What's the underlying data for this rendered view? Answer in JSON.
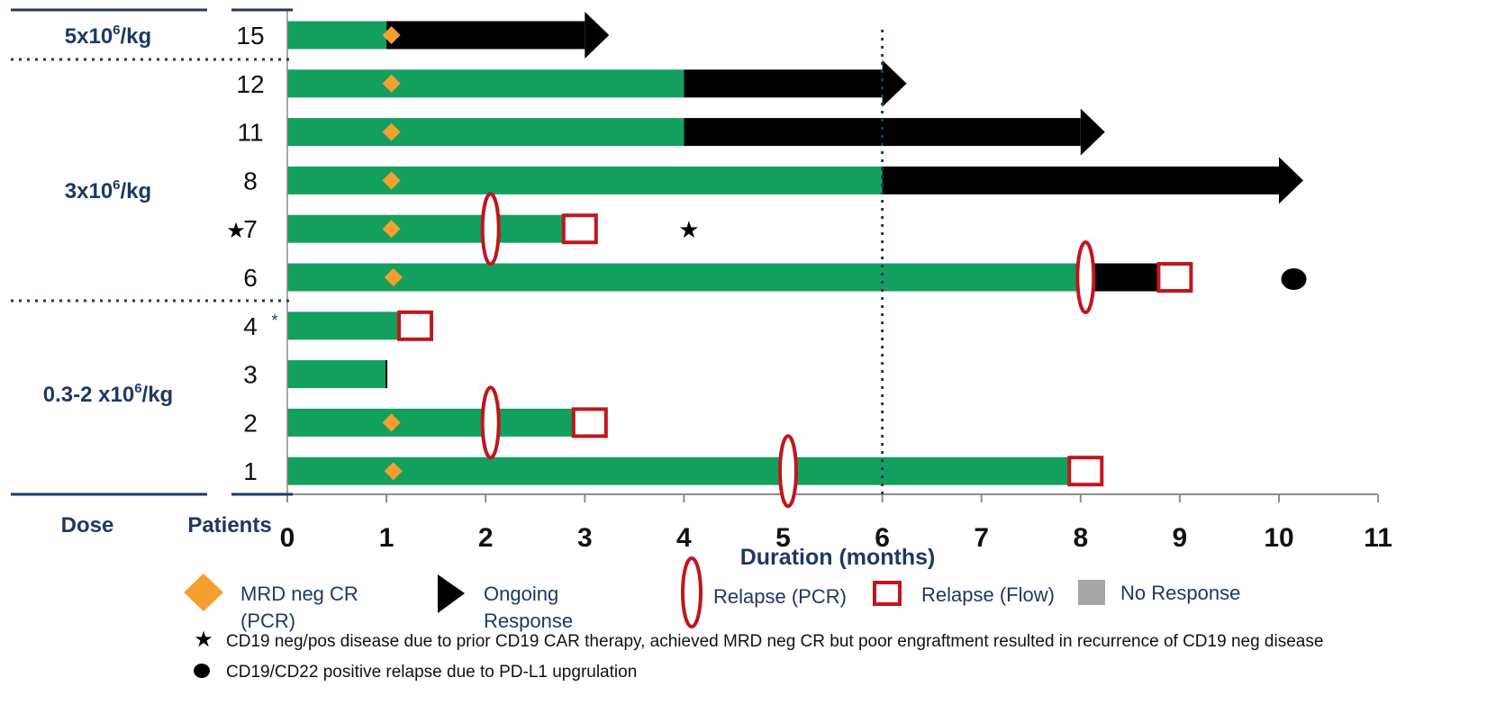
{
  "chart_data": {
    "type": "bar",
    "xlabel": "Duration (months)",
    "xlim": [
      0,
      11
    ],
    "x_ticks": [
      "0",
      "1",
      "2",
      "3",
      "4",
      "5",
      "6",
      "7",
      "8",
      "9",
      "10",
      "11"
    ],
    "reference_line_month": 6,
    "column_headers": {
      "dose": "Dose",
      "patients": "Patients"
    },
    "dose_groups": [
      {
        "label": "5x10",
        "sup": "6",
        "suffix": "/kg",
        "patients": [
          "15"
        ]
      },
      {
        "label": "3x10",
        "sup": "6",
        "suffix": "/kg",
        "patients": [
          "12",
          "11",
          "8",
          "7",
          "6"
        ]
      },
      {
        "label": "0.3-2 x10",
        "sup": "6",
        "suffix": "/kg",
        "patients": [
          "4",
          "3",
          "2",
          "1"
        ]
      }
    ],
    "patients": [
      {
        "id": "15",
        "prefix": "",
        "note_mark": "",
        "response_end": 1.0,
        "ongoing_end": 3.0,
        "arrow": true,
        "mrd": 1.05,
        "pcr": null,
        "flow": null,
        "star_at": null,
        "dot_at": null
      },
      {
        "id": "12",
        "prefix": "",
        "note_mark": "",
        "response_end": 4.0,
        "ongoing_end": 6.0,
        "arrow": true,
        "mrd": 1.05,
        "pcr": null,
        "flow": null,
        "star_at": null,
        "dot_at": null
      },
      {
        "id": "11",
        "prefix": "",
        "note_mark": "",
        "response_end": 4.0,
        "ongoing_end": 8.0,
        "arrow": true,
        "mrd": 1.05,
        "pcr": null,
        "flow": null,
        "star_at": null,
        "dot_at": null
      },
      {
        "id": "8",
        "prefix": "",
        "note_mark": "",
        "response_end": 6.0,
        "ongoing_end": 10.0,
        "arrow": true,
        "mrd": 1.05,
        "pcr": null,
        "flow": null,
        "star_at": null,
        "dot_at": null
      },
      {
        "id": "7",
        "prefix": "★",
        "note_mark": "",
        "response_end": 2.95,
        "ongoing_end": null,
        "arrow": false,
        "mrd": 1.05,
        "pcr": 2.05,
        "flow": 2.95,
        "star_at": 4.05,
        "dot_at": null
      },
      {
        "id": "6",
        "prefix": "",
        "note_mark": "",
        "response_end": 8.05,
        "ongoing_end": 8.95,
        "arrow": false,
        "mrd": 1.07,
        "pcr": 8.05,
        "flow": 8.95,
        "star_at": null,
        "dot_at": 10.15
      },
      {
        "id": "4",
        "prefix": "",
        "note_mark": "*",
        "response_end": 1.2,
        "ongoing_end": null,
        "arrow": false,
        "mrd": null,
        "pcr": null,
        "flow": 1.29,
        "star_at": null,
        "dot_at": null
      },
      {
        "id": "3",
        "prefix": "",
        "note_mark": "",
        "response_end": 1.0,
        "ongoing_end": null,
        "arrow": false,
        "mrd": null,
        "pcr": null,
        "flow": null,
        "star_at": null,
        "dot_at": null
      },
      {
        "id": "2",
        "prefix": "",
        "note_mark": "",
        "response_end": 3.0,
        "ongoing_end": null,
        "arrow": false,
        "mrd": 1.05,
        "pcr": 2.05,
        "flow": 3.05,
        "star_at": null,
        "dot_at": null
      },
      {
        "id": "1",
        "prefix": "",
        "note_mark": "",
        "response_end": 8.0,
        "ongoing_end": null,
        "arrow": false,
        "mrd": 1.07,
        "pcr": 5.05,
        "flow": 8.05,
        "star_at": null,
        "dot_at": null
      }
    ],
    "legend": [
      {
        "key": "mrd",
        "label_lines": [
          "MRD neg CR",
          "(PCR)"
        ]
      },
      {
        "key": "ongoing",
        "label_lines": [
          "Ongoing",
          "Response"
        ]
      },
      {
        "key": "pcr",
        "label_lines": [
          "Relapse (PCR)"
        ]
      },
      {
        "key": "flow",
        "label_lines": [
          "Relapse (Flow)"
        ]
      },
      {
        "key": "none",
        "label_lines": [
          "No Response"
        ]
      }
    ],
    "footnotes": [
      {
        "symbol": "star",
        "text": "CD19 neg/pos disease due to prior CD19 CAR therapy, achieved MRD neg CR but poor engraftment resulted in recurrence of CD19 neg disease"
      },
      {
        "symbol": "dot",
        "text": "CD19/CD22 positive relapse due to PD-L1 upgrulation"
      }
    ],
    "colors": {
      "response": "#13a05f",
      "ongoing": "#000000",
      "mrd": "#f5a02e",
      "relapse": "#c0161e",
      "no_response": "#a6a6a6",
      "dose_text": "#1f3864",
      "reference_line": "#1f3864"
    }
  }
}
